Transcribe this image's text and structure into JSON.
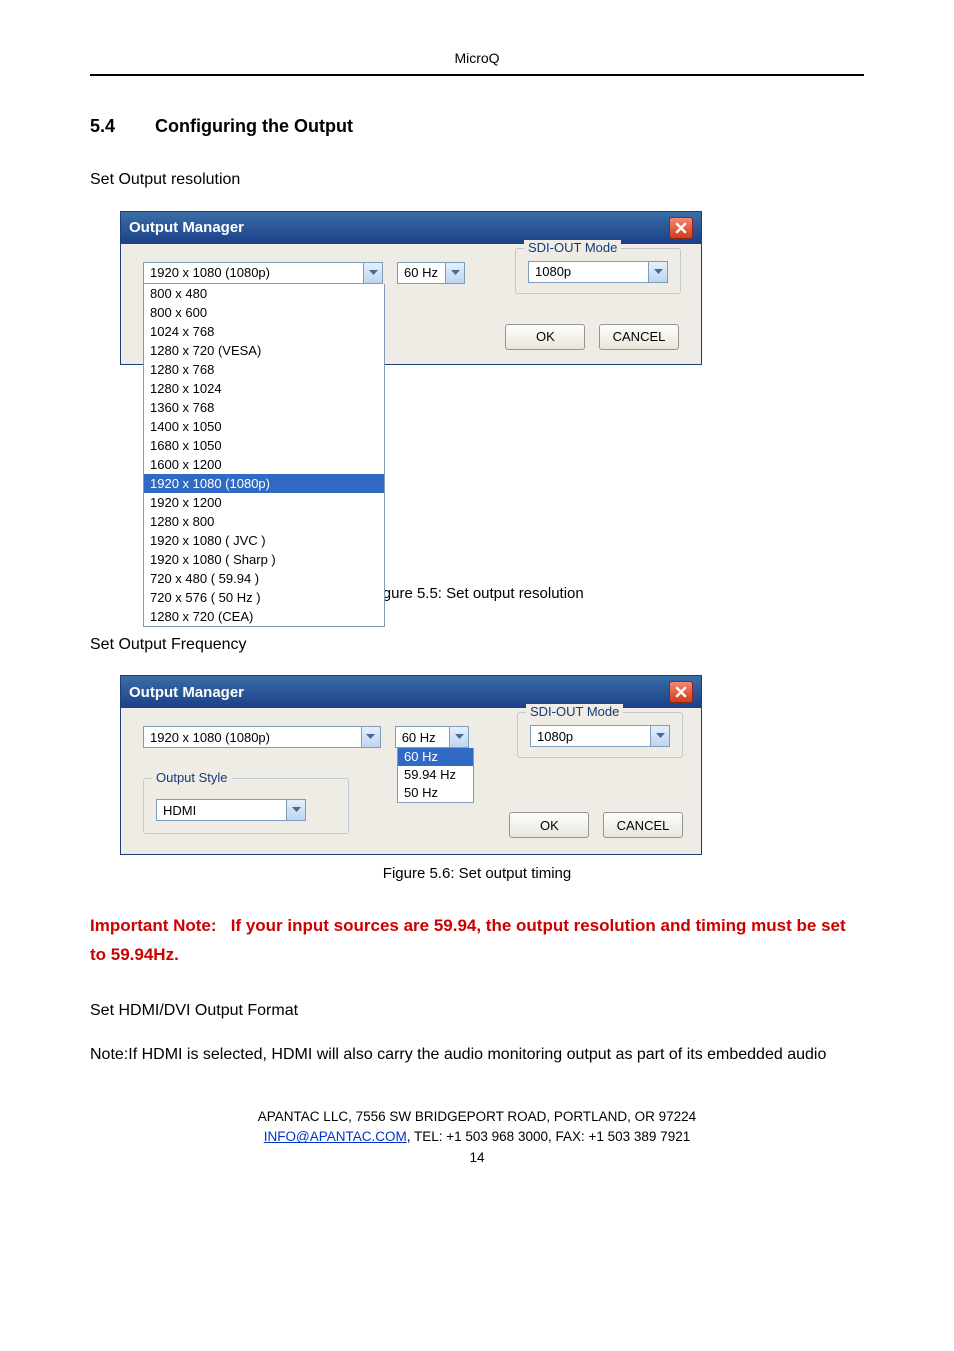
{
  "header": {
    "product": "MicroQ"
  },
  "section": {
    "number": "5.4",
    "title": "Configuring the Output"
  },
  "text": {
    "setres": "Set Output resolution",
    "setfreq": "Set Output Frequency",
    "sethdmi": "Set HDMI/DVI Output Format",
    "note_hdmi": "Note:If HDMI is selected, HDMI will also carry the audio monitoring output as part of its embedded audio"
  },
  "captions": {
    "fig55": "Figure 5.5:   Set output resolution",
    "fig56": "Figure 5.6:   Set output timing"
  },
  "important": {
    "prefix": "Important Note:",
    "rest": "If your input sources are 59.94, the output resolution and timing must be set to 59.94Hz."
  },
  "dialog": {
    "title": "Output Manager",
    "sdi_legend": "SDI-OUT Mode",
    "output_style_legend": "Output Style",
    "ok": "OK",
    "cancel": "CANCEL"
  },
  "dlg1": {
    "resolution_value": "1920 x 1080 (1080p)",
    "freq_value": "60 Hz",
    "sdi_value": "1080p",
    "options": [
      "800 x 480",
      "800 x 600",
      "1024 x 768",
      "1280 x 720 (VESA)",
      "1280 x 768",
      "1280 x 1024",
      "1360 x 768",
      "1400 x 1050",
      "1680 x 1050",
      "1600 x 1200",
      "1920 x 1080 (1080p)",
      "1920 x 1200",
      "1280 x 800",
      "1920 x 1080 ( JVC )",
      "1920 x 1080 ( Sharp )",
      "720 x 480  ( 59.94 )",
      "720 x 576 ( 50 Hz )",
      "1280 x 720 (CEA)"
    ],
    "selected_index": 10
  },
  "dlg2": {
    "resolution_value": "1920 x 1080 (1080p)",
    "freq_value": "60 Hz",
    "sdi_value": "1080p",
    "output_style_value": "HDMI",
    "freq_options": [
      "60 Hz",
      "59.94 Hz",
      "50 Hz"
    ],
    "freq_selected_index": 0
  },
  "footer": {
    "line1": "APANTAC LLC, 7556 SW BRIDGEPORT ROAD, PORTLAND, OR 97224",
    "email": "INFO@APANTAC.COM",
    "line2_rest": ", TEL:   +1 503 968 3000, FAX:   +1 503 389 7921",
    "pagenum": "14"
  }
}
